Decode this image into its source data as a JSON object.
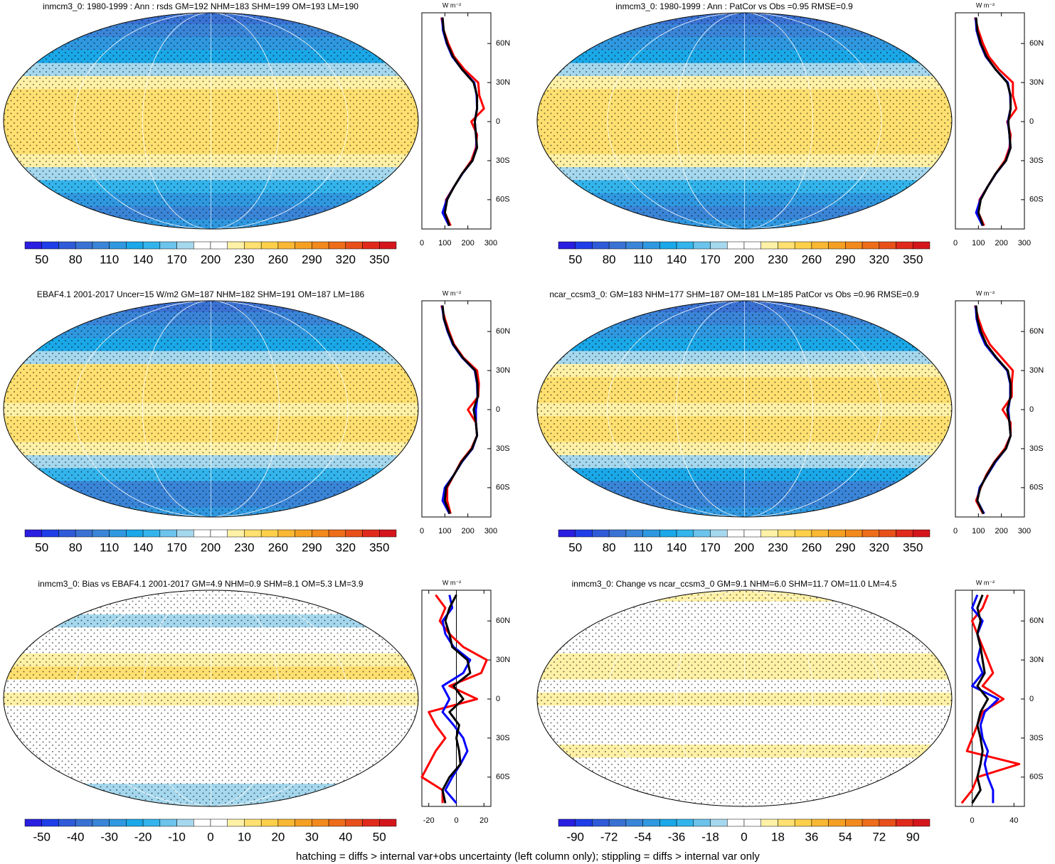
{
  "chart_data": [
    {
      "type": "map",
      "title": "inmcm3_0: 1980-1999 : Ann : rsds GM=192 NHM=183 SHM=199 OM=193 LM=190",
      "colorbar": {
        "clim": [
          35,
          365
        ],
        "ticks": [
          50,
          80,
          110,
          140,
          170,
          200,
          230,
          260,
          290,
          320,
          350
        ],
        "colors": [
          "#2a1ee0",
          "#1f3ee8",
          "#2f5bd8",
          "#3a72d4",
          "#3a85d8",
          "#2f98e0",
          "#1aa8e8",
          "#33b4ec",
          "#6cc3ec",
          "#a5d8ee",
          "#ffffff",
          "#ffffff",
          "#fff1a6",
          "#ffe070",
          "#fdd04a",
          "#f9b833",
          "#f5a023",
          "#f28a1d",
          "#ee6d1a",
          "#e8501a",
          "#e02a1c",
          "#d4161c"
        ]
      },
      "profile": {
        "type": "line",
        "xlabel": "W m⁻²",
        "xlim": [
          0,
          300
        ],
        "xticks": [
          0,
          100,
          200,
          300
        ],
        "ylim": [
          -82.5,
          83.6
        ],
        "yticks": [
          {
            "value": 60,
            "label": "60N"
          },
          {
            "value": 30,
            "label": "30N"
          },
          0,
          {
            "value": -30,
            "label": "30S"
          },
          {
            "value": -60,
            "label": "60S"
          }
        ],
        "y": [
          80,
          70,
          60,
          50,
          40,
          30,
          20,
          10,
          0,
          -10,
          -20,
          -30,
          -40,
          -50,
          -60,
          -70,
          -80
        ],
        "series": [
          {
            "color": "#ff0000",
            "values": [
              85,
              95,
              115,
              140,
              185,
              245,
              250,
              270,
              215,
              240,
              235,
              215,
              175,
              140,
              105,
              100,
              125
            ]
          },
          {
            "color": "#0000ff",
            "values": [
              88,
              92,
              108,
              132,
              175,
              228,
              238,
              240,
              230,
              235,
              238,
              220,
              176,
              140,
              108,
              90,
              118
            ]
          },
          {
            "color": "#000000",
            "values": [
              90,
              95,
              110,
              135,
              175,
              225,
              240,
              240,
              230,
              235,
              240,
              220,
              175,
              140,
              110,
              100,
              120
            ]
          }
        ]
      }
    },
    {
      "type": "map",
      "title": "inmcm3_0: 1980-1999 : Ann : PatCor vs Obs =0.95 RMSE=0.9",
      "colorbar": {
        "clim": [
          35,
          365
        ],
        "ticks": [
          50,
          80,
          110,
          140,
          170,
          200,
          230,
          260,
          290,
          320,
          350
        ],
        "colors": [
          "#2a1ee0",
          "#1f3ee8",
          "#2f5bd8",
          "#3a72d4",
          "#3a85d8",
          "#2f98e0",
          "#1aa8e8",
          "#33b4ec",
          "#6cc3ec",
          "#a5d8ee",
          "#ffffff",
          "#ffffff",
          "#fff1a6",
          "#ffe070",
          "#fdd04a",
          "#f9b833",
          "#f5a023",
          "#f28a1d",
          "#ee6d1a",
          "#e8501a",
          "#e02a1c",
          "#d4161c"
        ]
      },
      "profile": {
        "type": "line",
        "xlabel": "W m⁻²",
        "xlim": [
          0,
          300
        ],
        "xticks": [
          0,
          100,
          200,
          300
        ],
        "ylim": [
          -82.5,
          83.6
        ],
        "yticks": [
          {
            "value": 60,
            "label": "60N"
          },
          {
            "value": 30,
            "label": "30N"
          },
          0,
          {
            "value": -30,
            "label": "30S"
          },
          {
            "value": -60,
            "label": "60S"
          }
        ],
        "y": [
          80,
          70,
          60,
          50,
          40,
          30,
          20,
          10,
          0,
          -10,
          -20,
          -30,
          -40,
          -50,
          -60,
          -70,
          -80
        ],
        "series": [
          {
            "color": "#ff0000",
            "values": [
              85,
              100,
              120,
              145,
              190,
              250,
              250,
              265,
              225,
              240,
              235,
              215,
              175,
              140,
              105,
              100,
              125
            ]
          },
          {
            "color": "#0000ff",
            "values": [
              88,
              92,
              108,
              132,
              175,
              228,
              238,
              240,
              228,
              235,
              238,
              220,
              176,
              140,
              108,
              90,
              118
            ]
          },
          {
            "color": "#000000",
            "values": [
              90,
              95,
              110,
              135,
              175,
              225,
              240,
              240,
              230,
              235,
              240,
              220,
              175,
              140,
              110,
              100,
              120
            ]
          }
        ]
      }
    },
    {
      "type": "map",
      "title": "EBAF4.1 2001-2017 Uncer=15 W/m2 GM=187 NHM=182 SHM=191 OM=187 LM=186",
      "colorbar": {
        "clim": [
          35,
          365
        ],
        "ticks": [
          50,
          80,
          110,
          140,
          170,
          200,
          230,
          260,
          290,
          320,
          350
        ],
        "colors": [
          "#2a1ee0",
          "#1f3ee8",
          "#2f5bd8",
          "#3a72d4",
          "#3a85d8",
          "#2f98e0",
          "#1aa8e8",
          "#33b4ec",
          "#6cc3ec",
          "#a5d8ee",
          "#ffffff",
          "#ffffff",
          "#fff1a6",
          "#ffe070",
          "#fdd04a",
          "#f9b833",
          "#f5a023",
          "#f28a1d",
          "#ee6d1a",
          "#e8501a",
          "#e02a1c",
          "#d4161c"
        ]
      },
      "profile": {
        "type": "line",
        "xlabel": "W m⁻²",
        "xlim": [
          0,
          300
        ],
        "xticks": [
          0,
          100,
          200,
          300
        ],
        "ylim": [
          -82.5,
          83.6
        ],
        "yticks": [
          {
            "value": 60,
            "label": "60N"
          },
          {
            "value": 30,
            "label": "30N"
          },
          0,
          {
            "value": -30,
            "label": "30S"
          },
          {
            "value": -60,
            "label": "60S"
          }
        ],
        "y": [
          80,
          70,
          60,
          50,
          40,
          30,
          20,
          10,
          0,
          -10,
          -20,
          -30,
          -40,
          -50,
          -60,
          -70,
          -80
        ],
        "series": [
          {
            "color": "#ff0000",
            "values": [
              85,
              100,
              118,
              140,
              180,
              240,
              248,
              245,
              200,
              235,
              240,
              215,
              170,
              140,
              110,
              110,
              125
            ]
          },
          {
            "color": "#0000ff",
            "values": [
              88,
              95,
              112,
              135,
              175,
              230,
              240,
              242,
              235,
              235,
              240,
              220,
              175,
              140,
              100,
              90,
              120
            ]
          },
          {
            "color": "#000000",
            "values": [
              90,
              96,
              114,
              137,
              177,
              232,
              242,
              243,
              225,
              235,
              240,
              218,
              173,
              140,
              105,
              100,
              122
            ]
          }
        ]
      }
    },
    {
      "type": "map",
      "title": "ncar_ccsm3_0: GM=183 NHM=177 SHM=187 OM=181 LM=185 PatCor vs Obs =0.96 RMSE=0.9",
      "colorbar": {
        "clim": [
          35,
          365
        ],
        "ticks": [
          50,
          80,
          110,
          140,
          170,
          200,
          230,
          260,
          290,
          320,
          350
        ],
        "colors": [
          "#2a1ee0",
          "#1f3ee8",
          "#2f5bd8",
          "#3a72d4",
          "#3a85d8",
          "#2f98e0",
          "#1aa8e8",
          "#33b4ec",
          "#6cc3ec",
          "#a5d8ee",
          "#ffffff",
          "#ffffff",
          "#fff1a6",
          "#ffe070",
          "#fdd04a",
          "#f9b833",
          "#f5a023",
          "#f28a1d",
          "#ee6d1a",
          "#e8501a",
          "#e02a1c",
          "#d4161c"
        ]
      },
      "profile": {
        "type": "line",
        "xlabel": "W m⁻²",
        "xlim": [
          0,
          300
        ],
        "xticks": [
          0,
          100,
          200,
          300
        ],
        "ylim": [
          -82.5,
          83.6
        ],
        "yticks": [
          {
            "value": 60,
            "label": "60N"
          },
          {
            "value": 30,
            "label": "30N"
          },
          0,
          {
            "value": -30,
            "label": "30S"
          },
          {
            "value": -60,
            "label": "60S"
          }
        ],
        "y": [
          80,
          70,
          60,
          50,
          40,
          30,
          20,
          10,
          0,
          -10,
          -20,
          -30,
          -40,
          -50,
          -60,
          -70,
          -80
        ],
        "series": [
          {
            "color": "#ff0000",
            "values": [
              85,
              100,
              120,
              150,
              200,
              250,
              245,
              245,
              205,
              240,
              240,
              215,
              170,
              135,
              110,
              90,
              120
            ]
          },
          {
            "color": "#0000ff",
            "values": [
              88,
              92,
              105,
              130,
              175,
              225,
              238,
              238,
              230,
              235,
              240,
              220,
              175,
              140,
              105,
              95,
              125
            ]
          },
          {
            "color": "#000000",
            "values": [
              90,
              95,
              110,
              135,
              178,
              228,
              240,
              240,
              225,
              235,
              240,
              220,
              172,
              138,
              108,
              95,
              122
            ]
          }
        ]
      }
    },
    {
      "type": "map",
      "title": "inmcm3_0: Bias vs EBAF4.1 2001-2017 GM=4.9 NHM=0.9 SHM=8.1 OM=5.3 LM=3.9",
      "colorbar": {
        "clim": [
          -55,
          55
        ],
        "ticks": [
          -50,
          -40,
          -30,
          -20,
          -10,
          0,
          10,
          20,
          30,
          40,
          50
        ],
        "colors": [
          "#2a1ee0",
          "#1f3ee8",
          "#2f5bd8",
          "#3a72d4",
          "#3a85d8",
          "#2f98e0",
          "#1aa8e8",
          "#33b4ec",
          "#6cc3ec",
          "#a5d8ee",
          "#ffffff",
          "#ffffff",
          "#fff1a6",
          "#ffe070",
          "#fdd04a",
          "#f9b833",
          "#f5a023",
          "#f28a1d",
          "#ee6d1a",
          "#e8501a",
          "#e02a1c",
          "#d4161c"
        ]
      },
      "profile": {
        "type": "line",
        "xlabel": "W m⁻²",
        "xlim": [
          -25,
          25
        ],
        "xticks": [
          -20,
          0,
          20
        ],
        "ylim": [
          -82.5,
          83.6
        ],
        "zero_line": true,
        "yticks": [
          {
            "value": 60,
            "label": "60N"
          },
          {
            "value": 30,
            "label": "30N"
          },
          0,
          {
            "value": -30,
            "label": "30S"
          },
          {
            "value": -60,
            "label": "60S"
          }
        ],
        "y": [
          80,
          70,
          60,
          50,
          40,
          30,
          20,
          10,
          0,
          -10,
          -20,
          -30,
          -40,
          -50,
          -60,
          -70,
          -80
        ],
        "series": [
          {
            "color": "#ff0000",
            "values": [
              -15,
              -8,
              -12,
              -5,
              5,
              22,
              18,
              -5,
              15,
              -20,
              -15,
              -8,
              -15,
              -20,
              -25,
              -10,
              -10
            ]
          },
          {
            "color": "#0000ff",
            "values": [
              -5,
              -3,
              -10,
              -8,
              -2,
              10,
              5,
              -10,
              -5,
              -10,
              -2,
              5,
              8,
              3,
              -3,
              -8,
              0
            ]
          },
          {
            "color": "#000000",
            "values": [
              0,
              -5,
              -8,
              -5,
              -3,
              8,
              10,
              -2,
              5,
              -5,
              2,
              0,
              2,
              3,
              -5,
              -10,
              -8
            ]
          }
        ]
      }
    },
    {
      "type": "map",
      "title": "inmcm3_0: Change vs ncar_ccsm3_0 GM=9.1 NHM=6.0 SHM=11.7 OM=11.0 LM=4.5",
      "colorbar": {
        "clim": [
          -99,
          99
        ],
        "ticks": [
          -90,
          -72,
          -54,
          -36,
          -18,
          0,
          18,
          36,
          54,
          72,
          90
        ],
        "colors": [
          "#2a1ee0",
          "#1f3ee8",
          "#2f5bd8",
          "#3a72d4",
          "#3a85d8",
          "#2f98e0",
          "#1aa8e8",
          "#33b4ec",
          "#6cc3ec",
          "#a5d8ee",
          "#ffffff",
          "#ffffff",
          "#fff1a6",
          "#ffe070",
          "#fdd04a",
          "#f9b833",
          "#f5a023",
          "#f28a1d",
          "#ee6d1a",
          "#e8501a",
          "#e02a1c",
          "#d4161c"
        ]
      },
      "profile": {
        "type": "line",
        "xlabel": "W m⁻²",
        "xlim": [
          -16,
          50
        ],
        "xticks": [
          0,
          40
        ],
        "ylim": [
          -82.5,
          83.6
        ],
        "zero_line": true,
        "yticks": [
          {
            "value": 60,
            "label": "60N"
          },
          {
            "value": 30,
            "label": "30N"
          },
          0,
          {
            "value": -30,
            "label": "30S"
          },
          {
            "value": -60,
            "label": "60S"
          }
        ],
        "y": [
          80,
          70,
          60,
          50,
          40,
          30,
          20,
          10,
          0,
          -10,
          -20,
          -30,
          -40,
          -50,
          -60,
          -70,
          -80
        ],
        "series": [
          {
            "color": "#ff0000",
            "values": [
              15,
              10,
              0,
              5,
              10,
              15,
              20,
              10,
              30,
              10,
              5,
              0,
              -5,
              45,
              5,
              0,
              -10
            ]
          },
          {
            "color": "#0000ff",
            "values": [
              5,
              0,
              10,
              5,
              8,
              5,
              10,
              0,
              25,
              12,
              8,
              10,
              15,
              12,
              15,
              20,
              20
            ]
          },
          {
            "color": "#000000",
            "values": [
              10,
              5,
              8,
              5,
              8,
              10,
              12,
              5,
              15,
              8,
              5,
              8,
              10,
              8,
              5,
              8,
              0
            ]
          }
        ]
      }
    }
  ],
  "footnote": "hatching = diffs > internal var+obs uncertainty (left column only); stippling = diffs > internal var only"
}
